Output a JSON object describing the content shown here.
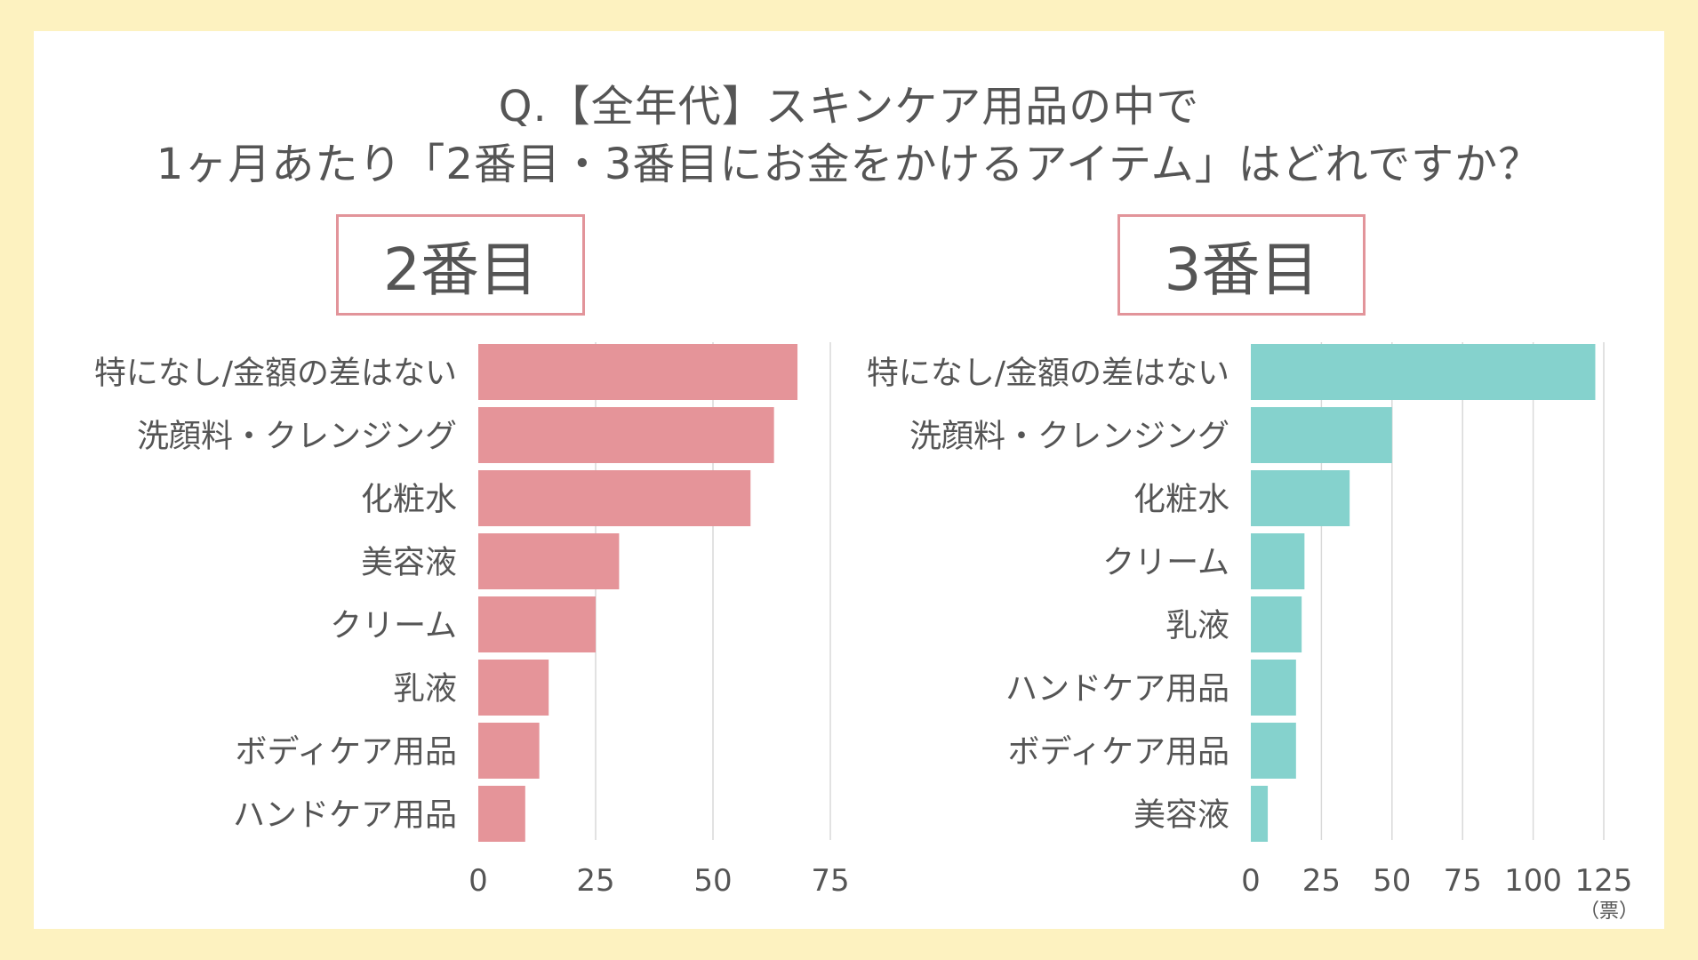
{
  "title": {
    "line1": "Q.【全年代】スキンケア用品の中で",
    "line2": "1ヶ月あたり「2番目・3番目にお金をかけるアイテム」はどれですか？"
  },
  "unit_label": "（票）",
  "colors": {
    "background": "#fdf2c0",
    "panel_border": "#e2949a",
    "bar_second": "#e59499",
    "bar_third": "#85d2cd",
    "grid": "#d9d9d9",
    "text": "#555555"
  },
  "chart_data": [
    {
      "type": "bar",
      "orientation": "horizontal",
      "panel_title": "2番目",
      "categories": [
        "特になし/金額の差はない",
        "洗顔料・クレンジング",
        "化粧水",
        "美容液",
        "クリーム",
        "乳液",
        "ボディケア用品",
        "ハンドケア用品"
      ],
      "values": [
        68,
        63,
        58,
        30,
        25,
        15,
        13,
        10
      ],
      "xlim": [
        0,
        75
      ],
      "xticks": [
        "0",
        "25",
        "50",
        "75"
      ],
      "grid": true,
      "color": "#e59499"
    },
    {
      "type": "bar",
      "orientation": "horizontal",
      "panel_title": "3番目",
      "categories": [
        "特になし/金額の差はない",
        "洗顔料・クレンジング",
        "化粧水",
        "クリーム",
        "乳液",
        "ハンドケア用品",
        "ボディケア用品",
        "美容液"
      ],
      "values": [
        122,
        50,
        35,
        19,
        18,
        16,
        16,
        6
      ],
      "xlim": [
        0,
        125
      ],
      "xticks": [
        "0",
        "25",
        "50",
        "75",
        "100",
        "125"
      ],
      "xlabel": "（票）",
      "grid": true,
      "color": "#85d2cd"
    }
  ]
}
